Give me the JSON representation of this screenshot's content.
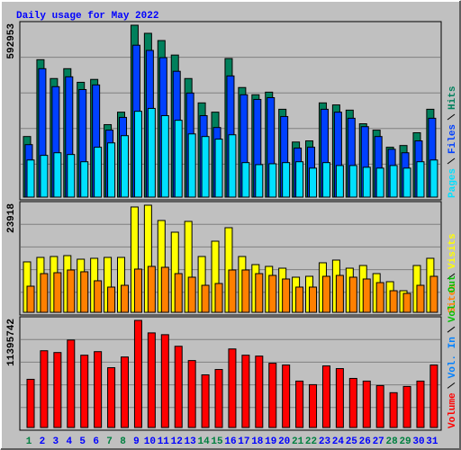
{
  "chart_data": {
    "type": "bar",
    "title": "Daily usage for May 2022",
    "categories": [
      "1",
      "2",
      "3",
      "4",
      "5",
      "6",
      "7",
      "8",
      "9",
      "10",
      "11",
      "12",
      "13",
      "14",
      "15",
      "16",
      "17",
      "18",
      "19",
      "20",
      "21",
      "22",
      "23",
      "24",
      "25",
      "26",
      "27",
      "28",
      "29",
      "30",
      "31"
    ],
    "category_colors": [
      "#008040",
      "#0000ff",
      "#0000ff",
      "#0000ff",
      "#0000ff",
      "#0000ff",
      "#008040",
      "#008040",
      "#0000ff",
      "#0000ff",
      "#0000ff",
      "#0000ff",
      "#0000ff",
      "#008040",
      "#008040",
      "#0000ff",
      "#0000ff",
      "#0000ff",
      "#0000ff",
      "#0000ff",
      "#008040",
      "#008040",
      "#0000ff",
      "#0000ff",
      "#0000ff",
      "#0000ff",
      "#0000ff",
      "#008040",
      "#008040",
      "#0000ff",
      "#0000ff"
    ],
    "panels": [
      {
        "ylim": [
          0,
          592953
        ],
        "yticks": [
          592953
        ],
        "series": [
          {
            "name": "Pages",
            "color": "#00e0ff",
            "values": [
              128000,
              144000,
              153000,
              147000,
              122000,
              172000,
              187000,
              212000,
              296000,
              306000,
              281000,
              265000,
              218000,
              209000,
              200000,
              215000,
              119000,
              112000,
              115000,
              119000,
              122000,
              100000,
              119000,
              109000,
              109000,
              103000,
              100000,
              109000,
              100000,
              122000,
              128000
            ]
          },
          {
            "name": "Files",
            "color": "#0040ff",
            "values": [
              181000,
              443000,
              381000,
              415000,
              371000,
              387000,
              231000,
              275000,
              524000,
              506000,
              481000,
              434000,
              359000,
              281000,
              240000,
              418000,
              353000,
              337000,
              343000,
              278000,
              169000,
              172000,
              303000,
              293000,
              272000,
              243000,
              209000,
              165000,
              153000,
              194000,
              272000
            ]
          },
          {
            "name": "Hits",
            "color": "#00805c",
            "values": [
              209000,
              474000,
              409000,
              443000,
              396000,
              406000,
              250000,
              293000,
              592953,
              565000,
              540000,
              490000,
              409000,
              325000,
              293000,
              478000,
              378000,
              353000,
              362000,
              303000,
              190000,
              194000,
              325000,
              318000,
              300000,
              253000,
              231000,
              172000,
              178000,
              222000,
              303000
            ]
          }
        ]
      },
      {
        "ylim": [
          0,
          23918
        ],
        "yticks": [
          23918
        ],
        "series": [
          {
            "name": "Sites",
            "color": "#ff8000",
            "values": [
              5830,
              8640,
              8840,
              9450,
              9050,
              7040,
              5630,
              6030,
              9650,
              10250,
              10050,
              8640,
              7840,
              6030,
              6430,
              9450,
              9450,
              8640,
              8240,
              7440,
              5630,
              5630,
              8040,
              8240,
              7840,
              7440,
              6630,
              4820,
              4220,
              6030,
              8040
            ]
          },
          {
            "name": "Visits",
            "color": "#ffff00",
            "values": [
              11260,
              12260,
              12460,
              12660,
              11860,
              12060,
              12260,
              12260,
              23520,
              23918,
              20500,
              17890,
              20300,
              12460,
              15880,
              18890,
              12460,
              10650,
              10250,
              9850,
              7840,
              8040,
              11060,
              11660,
              9850,
              10450,
              8640,
              6830,
              4820,
              10450,
              12060
            ]
          }
        ]
      },
      {
        "ylim": [
          0,
          11395742
        ],
        "yticks": [
          11395742
        ],
        "series": [
          {
            "name": "Volume",
            "color": "#ff0000",
            "values": [
              5128000,
              8167000,
              7977000,
              9307000,
              7692000,
              8072000,
              6363000,
              7502000,
              11395742,
              10066000,
              9876000,
              8642000,
              7122000,
              5603000,
              6173000,
              8357000,
              7692000,
              7597000,
              6837000,
              6648000,
              4938000,
              4558000,
              6553000,
              6268000,
              5223000,
              4938000,
              4463000,
              3704000,
              4368000,
              4938000,
              6648000
            ]
          },
          {
            "name": "Vol. In",
            "color": "#0080ff"
          },
          {
            "name": "Vol. Out",
            "color": "#00c000"
          }
        ]
      }
    ]
  }
}
